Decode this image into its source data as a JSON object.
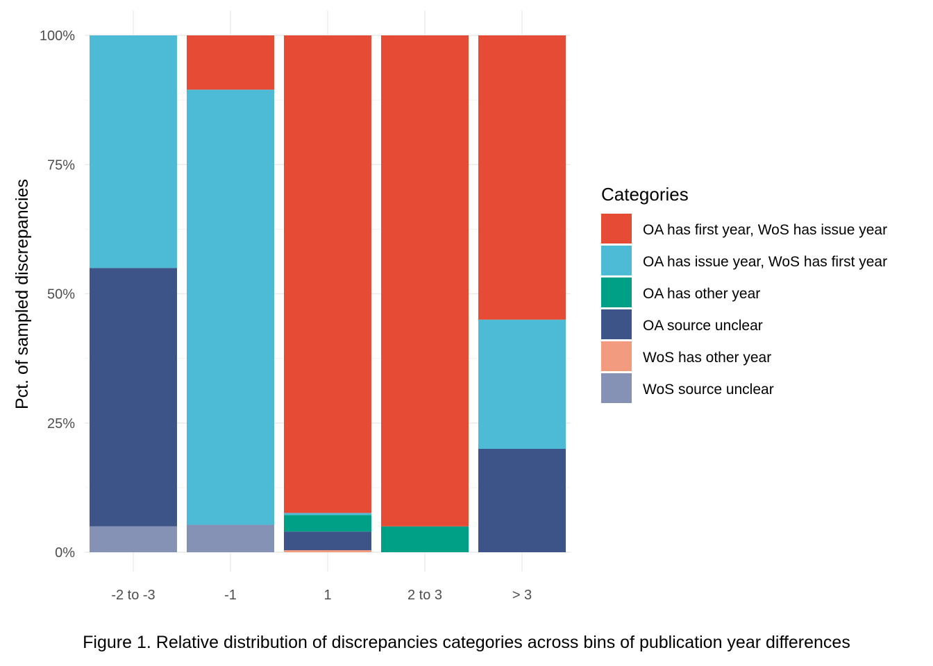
{
  "caption": "Figure 1. Relative distribution of discrepancies categories across bins of publication year differences",
  "chart_data": {
    "type": "bar",
    "stacked": true,
    "title": "",
    "xlabel": "",
    "ylabel": "Pct. of sampled discrepancies",
    "ylim": [
      0,
      100
    ],
    "yticks": [
      "0%",
      "25%",
      "50%",
      "75%",
      "100%"
    ],
    "ytick_values": [
      0,
      25,
      50,
      75,
      100
    ],
    "categories": [
      "-2 to -3",
      "-1",
      "1",
      "2 to 3",
      "> 3"
    ],
    "grid": true,
    "legend": {
      "title": "Categories",
      "position": "right"
    },
    "series": [
      {
        "name": "WoS source unclear",
        "color": "#8591B5",
        "values": [
          5,
          5.3,
          0,
          0,
          0
        ]
      },
      {
        "name": "WoS has other year",
        "color": "#F39B7F",
        "values": [
          0,
          0,
          0.4,
          0,
          0
        ]
      },
      {
        "name": "OA source unclear",
        "color": "#3C5488",
        "values": [
          50,
          0,
          3.6,
          0,
          20
        ]
      },
      {
        "name": "OA has other year",
        "color": "#00A087",
        "values": [
          0,
          0,
          3.2,
          5,
          0
        ]
      },
      {
        "name": "OA has issue year, WoS has first year",
        "color": "#4DBBD5",
        "values": [
          45,
          84.2,
          0.4,
          0,
          25
        ]
      },
      {
        "name": "OA has first year, WoS has issue year",
        "color": "#E64B35",
        "values": [
          0,
          10.5,
          92.4,
          95,
          55
        ]
      }
    ],
    "legend_order": [
      "OA has first year, WoS has issue year",
      "OA has issue year, WoS has first year",
      "OA has other year",
      "OA source unclear",
      "WoS has other year",
      "WoS source unclear"
    ]
  }
}
